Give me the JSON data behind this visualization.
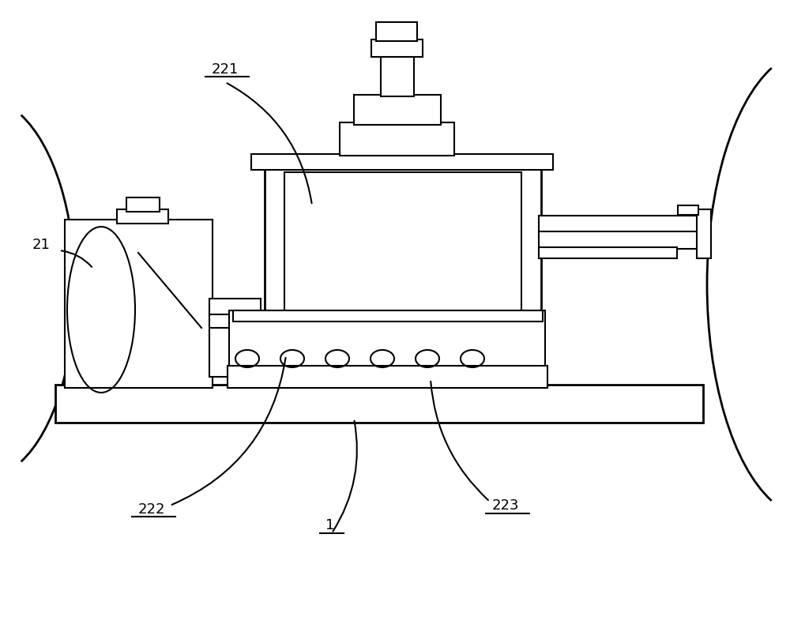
{
  "bg_color": "#ffffff",
  "lc": "#000000",
  "lw": 1.5,
  "tlw": 2.0,
  "label_fs": 13,
  "figw": 10.0,
  "figh": 7.95
}
